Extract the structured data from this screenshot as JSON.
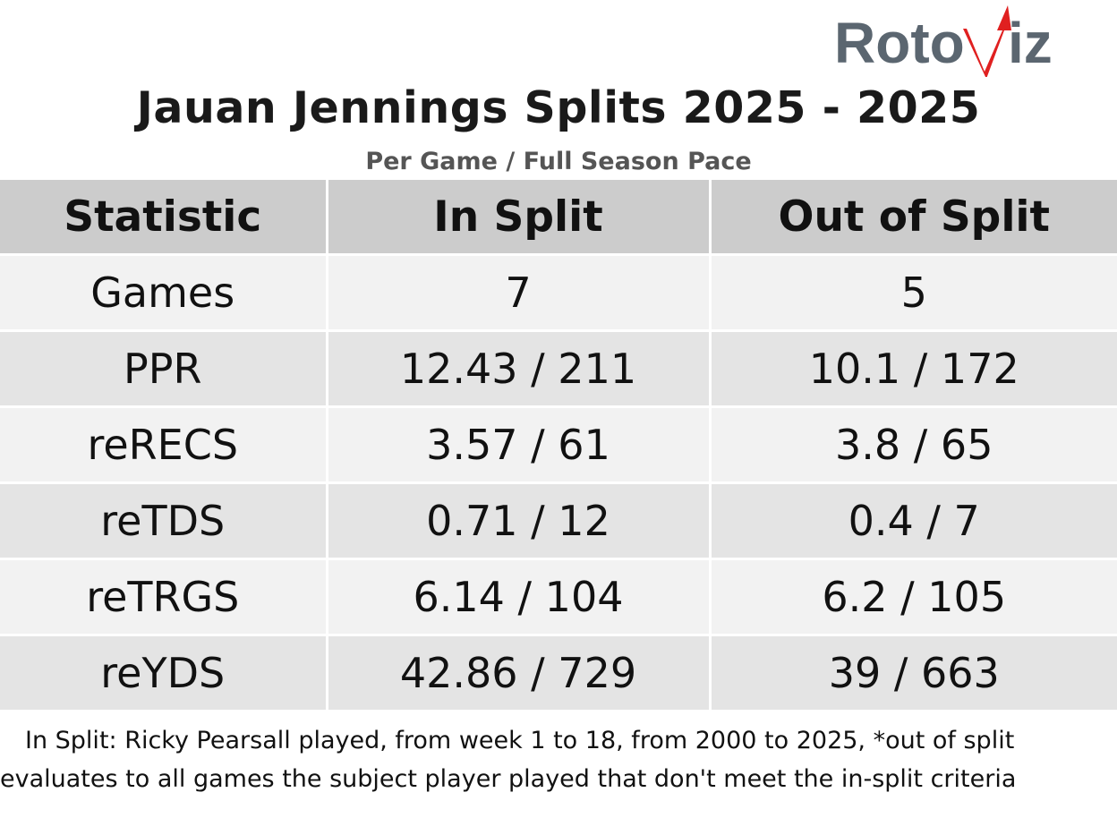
{
  "logo": {
    "text_left": "Roto",
    "text_right": "iz",
    "gray_color": "#5b6670",
    "red_color": "#e02020"
  },
  "chart_data": {
    "type": "table",
    "title": "Jauan Jennings Splits 2025 - 2025",
    "subtitle": "Per Game / Full Season Pace",
    "columns": [
      "Statistic",
      "In Split",
      "Out of Split"
    ],
    "rows": [
      {
        "stat": "Games",
        "in_split": "7",
        "out_of_split": "5"
      },
      {
        "stat": "PPR",
        "in_split": "12.43 / 211",
        "out_of_split": "10.1 / 172"
      },
      {
        "stat": "reRECS",
        "in_split": "3.57 / 61",
        "out_of_split": "3.8 / 65"
      },
      {
        "stat": "reTDS",
        "in_split": "0.71 / 12",
        "out_of_split": "0.4 / 7"
      },
      {
        "stat": "reTRGS",
        "in_split": "6.14 / 104",
        "out_of_split": "6.2 / 105"
      },
      {
        "stat": "reYDS",
        "in_split": "42.86 / 729",
        "out_of_split": "39 / 663"
      }
    ],
    "header_color": "#cccccc",
    "row_colors": [
      "#f2f2f2",
      "#e4e4e4"
    ]
  },
  "footnote": "In Split: Ricky Pearsall played, from week 1 to 18, from 2000 to 2025,  *out of split evaluates to all games the subject player played that don't meet the in-split criteria"
}
